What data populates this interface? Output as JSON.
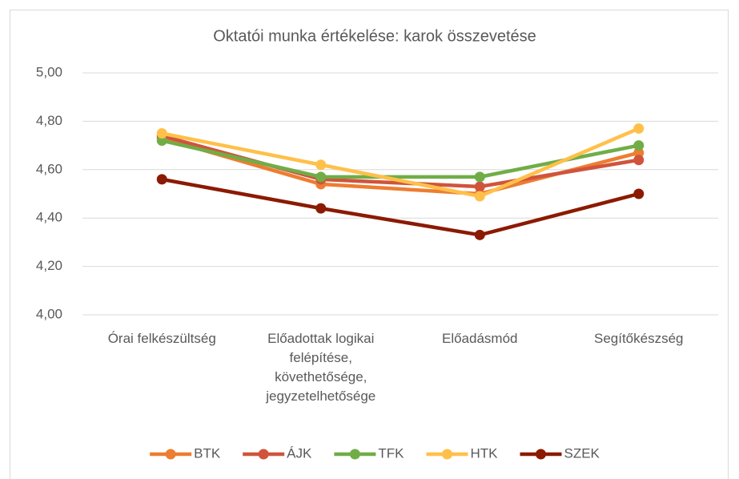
{
  "chart_data": {
    "type": "line",
    "title": "Oktatói munka értékelése: karok összevetése",
    "categories": [
      "Órai felkészültség",
      "Előadottak logikai felépítése, követhetősége, jegyzetelhetősége",
      "Előadásmód",
      "Segítőkészség"
    ],
    "series": [
      {
        "name": "BTK",
        "color": "#ed7d31",
        "values": [
          4.73,
          4.54,
          4.5,
          4.67
        ]
      },
      {
        "name": "ÁJK",
        "color": "#d0543c",
        "values": [
          4.74,
          4.56,
          4.53,
          4.64
        ]
      },
      {
        "name": "TFK",
        "color": "#70ad47",
        "values": [
          4.72,
          4.57,
          4.57,
          4.7
        ]
      },
      {
        "name": "HTK",
        "color": "#ffc04a",
        "values": [
          4.75,
          4.62,
          4.49,
          4.77
        ]
      },
      {
        "name": "SZEK",
        "color": "#8b1a00",
        "values": [
          4.56,
          4.44,
          4.33,
          4.5
        ]
      }
    ],
    "ylim": [
      4.0,
      5.0
    ],
    "yticks": [
      {
        "value": 4.0,
        "label": "4,00"
      },
      {
        "value": 4.2,
        "label": "4,20"
      },
      {
        "value": 4.4,
        "label": "4,40"
      },
      {
        "value": 4.6,
        "label": "4,60"
      },
      {
        "value": 4.8,
        "label": "4,80"
      },
      {
        "value": 5.0,
        "label": "5,00"
      }
    ],
    "grid": true,
    "legend": "bottom"
  }
}
